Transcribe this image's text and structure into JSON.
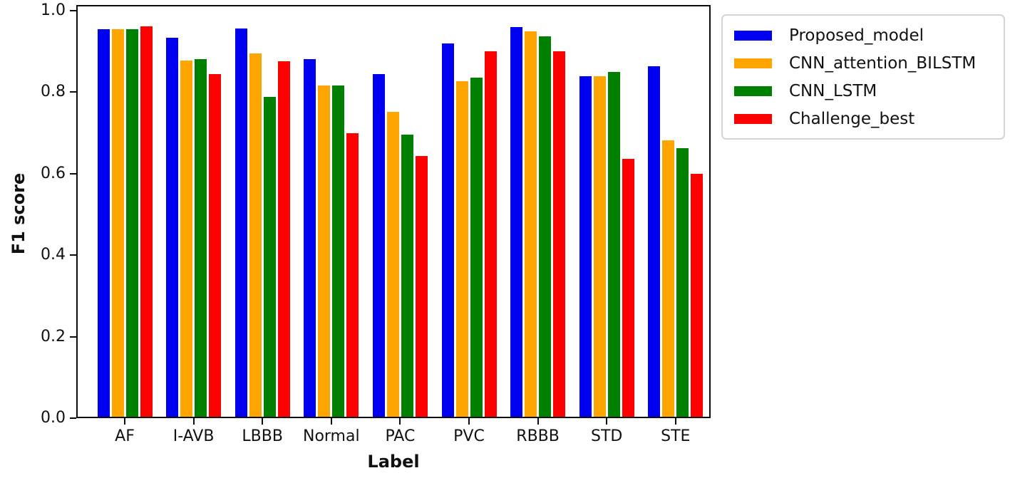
{
  "figure": {
    "background": "#ffffff",
    "spine_color": "#0d0d0d"
  },
  "chart_data": {
    "type": "bar",
    "title": "",
    "xlabel": "Label",
    "ylabel": "F1 score",
    "ylim": [
      0.0,
      1.0
    ],
    "grid": false,
    "legend_position": "outside upper right",
    "yticks": [
      0.0,
      0.2,
      0.4,
      0.6,
      0.8,
      1.0
    ],
    "ytick_labels": [
      "0.0",
      "0.2",
      "0.4",
      "0.6",
      "0.8",
      "1.0"
    ],
    "categories": [
      "AF",
      "I-AVB",
      "LBBB",
      "Normal",
      "PAC",
      "PVC",
      "RBBB",
      "STD",
      "STE"
    ],
    "series": [
      {
        "name": "Proposed_model",
        "color": "#0000f0",
        "values": [
          0.955,
          0.933,
          0.956,
          0.882,
          0.845,
          0.919,
          0.96,
          0.839,
          0.863
        ]
      },
      {
        "name": "CNN_attention_BILSTM",
        "color": "#ffa500",
        "values": [
          0.955,
          0.877,
          0.896,
          0.817,
          0.751,
          0.827,
          0.95,
          0.839,
          0.682
        ]
      },
      {
        "name": "CNN_LSTM",
        "color": "#008000",
        "values": [
          0.955,
          0.882,
          0.789,
          0.817,
          0.696,
          0.836,
          0.937,
          0.849,
          0.663
        ]
      },
      {
        "name": "Challenge_best",
        "color": "#ff0000",
        "values": [
          0.961,
          0.845,
          0.876,
          0.7,
          0.644,
          0.9,
          0.901,
          0.636,
          0.599
        ]
      }
    ]
  }
}
